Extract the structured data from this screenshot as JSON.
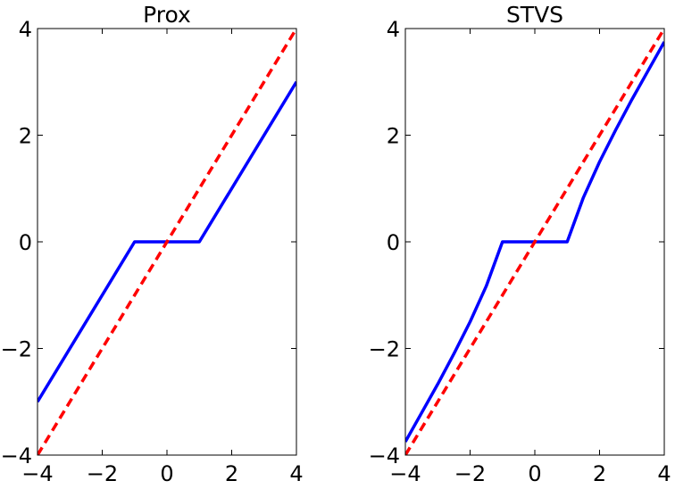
{
  "chart_data": [
    {
      "type": "line",
      "title": "Prox",
      "xlabel": "",
      "ylabel": "",
      "xlim": [
        -4,
        4
      ],
      "ylim": [
        -4,
        4
      ],
      "xticks": [
        "−4",
        "−2",
        "0",
        "2",
        "4"
      ],
      "yticks": [
        "−4",
        "−2",
        "0",
        "2",
        "4"
      ],
      "xtick_values": [
        -4,
        -2,
        0,
        2,
        4
      ],
      "ytick_values": [
        -4,
        -2,
        0,
        2,
        4
      ],
      "grid": false,
      "series": [
        {
          "color": "#0000ff",
          "style": "solid",
          "x": [
            -4,
            -1,
            1,
            4
          ],
          "y": [
            -3,
            0,
            0,
            3
          ]
        },
        {
          "color": "#ff0000",
          "style": "dashed",
          "x": [
            -4,
            4
          ],
          "y": [
            -4,
            4
          ]
        }
      ]
    },
    {
      "type": "line",
      "title": "STVS",
      "xlabel": "",
      "ylabel": "",
      "xlim": [
        -4,
        4
      ],
      "ylim": [
        -4,
        4
      ],
      "xticks": [
        "−4",
        "−2",
        "0",
        "2",
        "4"
      ],
      "yticks": [
        "−4",
        "−2",
        "0",
        "2",
        "4"
      ],
      "xtick_values": [
        -4,
        -2,
        0,
        2,
        4
      ],
      "ytick_values": [
        -4,
        -2,
        0,
        2,
        4
      ],
      "grid": false,
      "series": [
        {
          "color": "#0000ff",
          "style": "solid",
          "x": [
            -4,
            -3.5,
            -3,
            -2.5,
            -2,
            -1.5,
            -1,
            -1,
            1,
            1,
            1.5,
            2,
            2.5,
            3,
            3.5,
            4
          ],
          "y": [
            -3.75,
            -3.21,
            -2.67,
            -2.1,
            -1.5,
            -0.83,
            0,
            0,
            0,
            0,
            0.83,
            1.5,
            2.1,
            2.67,
            3.21,
            3.75
          ]
        },
        {
          "color": "#ff0000",
          "style": "dashed",
          "x": [
            -4,
            4
          ],
          "y": [
            -4,
            4
          ]
        }
      ]
    }
  ]
}
